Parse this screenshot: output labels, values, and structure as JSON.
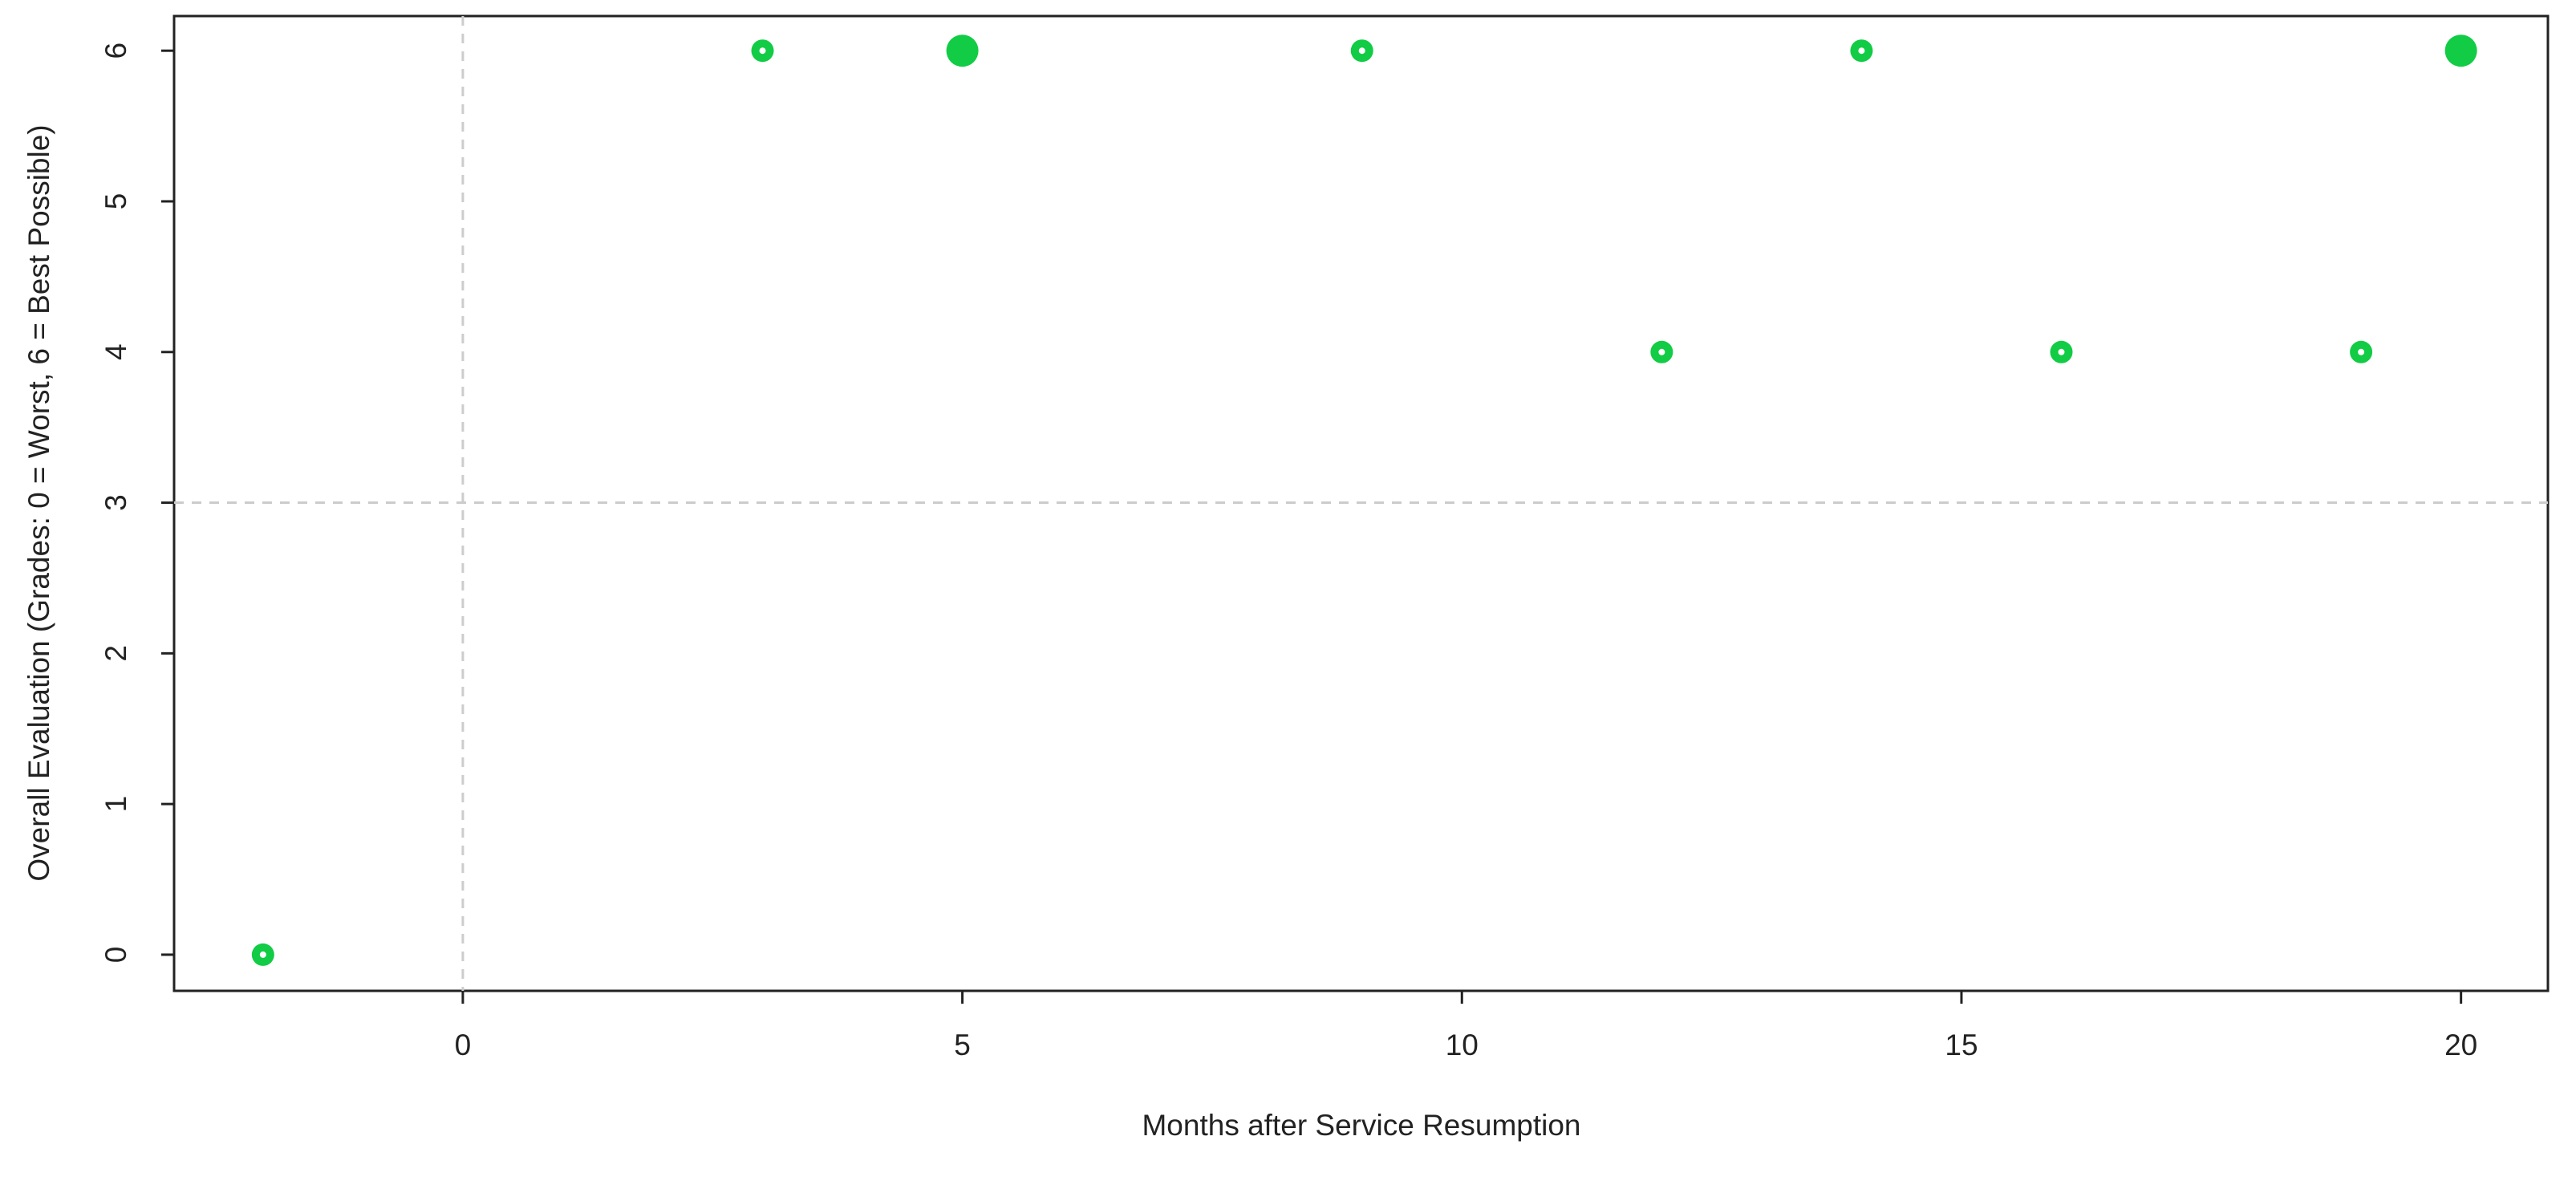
{
  "chart_data": {
    "type": "scatter",
    "x_label": "Months after Service Resumption",
    "y_label": "Overall Evaluation (Grades: 0 = Worst, 6 = Best Possible)",
    "x": [
      -2,
      3,
      5,
      9,
      12,
      14,
      16,
      19,
      20
    ],
    "values": [
      0,
      6,
      6,
      6,
      4,
      6,
      4,
      4,
      6
    ],
    "sizes": [
      1,
      1,
      2,
      1,
      1,
      1,
      1,
      1,
      2
    ],
    "color": "#11cc44",
    "xlim": [
      -2.89,
      20.87
    ],
    "ylim": [
      -0.24,
      6.23
    ],
    "xticks": [
      0,
      5,
      10,
      15,
      20
    ],
    "yticks": [
      0,
      1,
      2,
      3,
      4,
      5,
      6
    ],
    "reference_lines": {
      "x": [
        0
      ],
      "y": [
        3
      ]
    }
  }
}
